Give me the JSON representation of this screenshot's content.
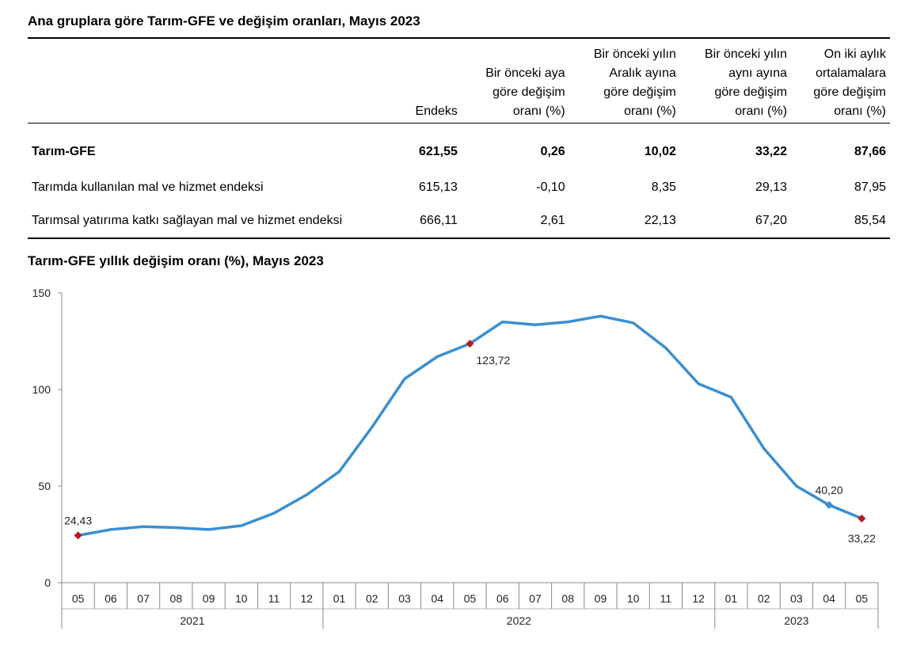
{
  "table_title": "Ana gruplara göre Tarım-GFE ve değişim oranları, Mayıs 2023",
  "table": {
    "columns": [
      "",
      "Endeks",
      "Bir önceki aya\ngöre değişim\noranı (%)",
      "Bir önceki yılın\nAralık ayına\ngöre değişim\noranı (%)",
      "Bir önceki yılın\naynı ayına\ngöre değişim\noranı (%)",
      "On iki aylık\nortalamalara\ngöre değişim\noranı (%)"
    ],
    "rows": [
      [
        "Tarım-GFE",
        "621,55",
        "0,26",
        "10,02",
        "33,22",
        "87,66"
      ],
      [
        "Tarımda kullanılan mal ve hizmet endeksi",
        "615,13",
        "-0,10",
        "8,35",
        "29,13",
        "87,95"
      ],
      [
        "Tarımsal yatırıma katkı sağlayan mal ve hizmet endeksi",
        "666,11",
        "2,61",
        "22,13",
        "67,20",
        "85,54"
      ]
    ]
  },
  "chart_title": "Tarım-GFE yıllık değişim oranı (%), Mayıs 2023",
  "chart_data": {
    "type": "line",
    "title": "Tarım-GFE yıllık değişim oranı (%), Mayıs 2023",
    "xlabel": "",
    "ylabel": "",
    "ylim": [
      0,
      150
    ],
    "yticks": [
      0,
      50,
      100,
      150
    ],
    "grid": false,
    "categories": [
      "05",
      "06",
      "07",
      "08",
      "09",
      "10",
      "11",
      "12",
      "01",
      "02",
      "03",
      "04",
      "05",
      "06",
      "07",
      "08",
      "09",
      "10",
      "11",
      "12",
      "01",
      "02",
      "03",
      "04",
      "05"
    ],
    "year_groups": [
      {
        "label": "2021",
        "count": 8
      },
      {
        "label": "2022",
        "count": 12
      },
      {
        "label": "2023",
        "count": 5
      }
    ],
    "series": [
      {
        "color": "#3a8fd1",
        "values": [
          24.43,
          27.5,
          29.0,
          28.5,
          27.5,
          29.5,
          36.0,
          45.5,
          57.5,
          80.5,
          105.5,
          117.0,
          123.72,
          135.0,
          133.5,
          135.0,
          138.0,
          134.5,
          121.5,
          103.0,
          96.0,
          69.5,
          50.0,
          40.2,
          33.22
        ]
      }
    ],
    "markers": [
      {
        "index": 0,
        "label": "24,43",
        "color": "#c0141c",
        "label_pos": "above"
      },
      {
        "index": 12,
        "label": "123,72",
        "color": "#c0141c",
        "label_pos": "below-right"
      },
      {
        "index": 23,
        "label": "40,20",
        "color": "#3a8fd1",
        "label_pos": "above"
      },
      {
        "index": 24,
        "label": "33,22",
        "color": "#c0141c",
        "label_pos": "below"
      }
    ]
  }
}
